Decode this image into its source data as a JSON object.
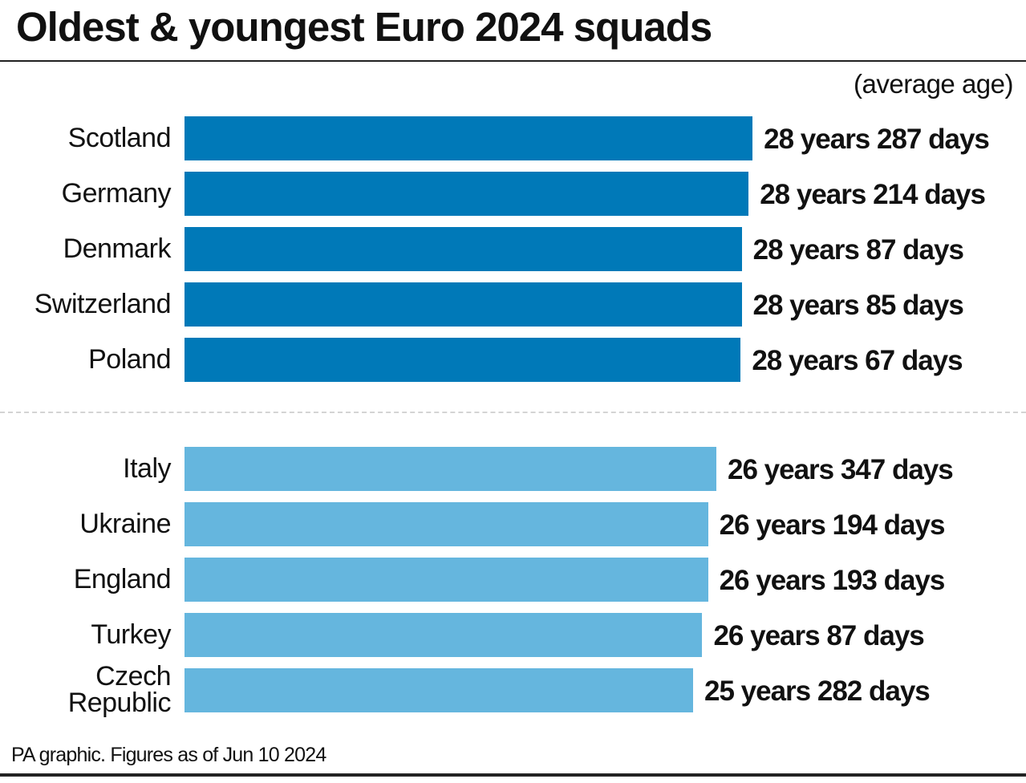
{
  "chart_data": {
    "type": "bar",
    "orientation": "horizontal",
    "title": "Oldest & youngest Euro 2024 squads",
    "unit_label": "(average age)",
    "footer": "PA graphic. Figures as of Jun 10 2024",
    "xlim": [
      0,
      29
    ],
    "grid": false,
    "colors": {
      "oldest": "#0079b8",
      "youngest": "#65b6de"
    },
    "groups": [
      {
        "group": "oldest",
        "items": [
          {
            "category": "Scotland",
            "years": 28,
            "days": 287,
            "label": "28 years 287 days"
          },
          {
            "category": "Germany",
            "years": 28,
            "days": 214,
            "label": "28 years 214 days"
          },
          {
            "category": "Denmark",
            "years": 28,
            "days": 87,
            "label": "28 years 87 days"
          },
          {
            "category": "Switzerland",
            "years": 28,
            "days": 85,
            "label": "28 years 85 days"
          },
          {
            "category": "Poland",
            "years": 28,
            "days": 67,
            "label": "28 years 67 days"
          }
        ]
      },
      {
        "group": "youngest",
        "items": [
          {
            "category": "Italy",
            "years": 26,
            "days": 347,
            "label": "26 years 347 days"
          },
          {
            "category": "Ukraine",
            "years": 26,
            "days": 194,
            "label": "26 years 194 days"
          },
          {
            "category": "England",
            "years": 26,
            "days": 193,
            "label": "26 years 193 days"
          },
          {
            "category": "Turkey",
            "years": 26,
            "days": 87,
            "label": "26 years 87 days"
          },
          {
            "category": "Czech Republic",
            "years": 25,
            "days": 282,
            "label": "25 years 282 days",
            "display_lines": [
              "Czech",
              "Republic"
            ]
          }
        ]
      }
    ]
  }
}
